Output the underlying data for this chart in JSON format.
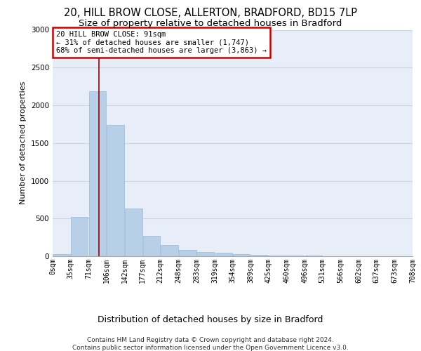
{
  "title_line1": "20, HILL BROW CLOSE, ALLERTON, BRADFORD, BD15 7LP",
  "title_line2": "Size of property relative to detached houses in Bradford",
  "xlabel": "Distribution of detached houses by size in Bradford",
  "ylabel": "Number of detached properties",
  "bin_labels": [
    "0sqm",
    "35sqm",
    "71sqm",
    "106sqm",
    "142sqm",
    "177sqm",
    "212sqm",
    "248sqm",
    "283sqm",
    "319sqm",
    "354sqm",
    "389sqm",
    "425sqm",
    "460sqm",
    "496sqm",
    "531sqm",
    "566sqm",
    "602sqm",
    "637sqm",
    "673sqm",
    "708sqm"
  ],
  "bar_values": [
    30,
    520,
    2190,
    1740,
    630,
    270,
    145,
    85,
    55,
    45,
    25,
    15,
    10,
    8,
    5,
    3,
    2,
    1,
    1,
    0,
    0
  ],
  "bar_color": "#b8cfe8",
  "bar_edge_color": "#9ab8d8",
  "grid_color": "#ccd6e8",
  "background_color": "#e8eef8",
  "annotation_line_color": "#990000",
  "annotation_box_text": "20 HILL BROW CLOSE: 91sqm\n← 31% of detached houses are smaller (1,747)\n68% of semi-detached houses are larger (3,863) →",
  "annotation_box_edge_color": "#cc0000",
  "ylim_max": 3000,
  "yticks": [
    0,
    500,
    1000,
    1500,
    2000,
    2500,
    3000
  ],
  "bin_edges": [
    0,
    35,
    71,
    106,
    142,
    177,
    212,
    248,
    283,
    319,
    354,
    389,
    425,
    460,
    496,
    531,
    566,
    602,
    637,
    673,
    708
  ],
  "footer_text": "Contains HM Land Registry data © Crown copyright and database right 2024.\nContains public sector information licensed under the Open Government Licence v3.0.",
  "property_size": 91,
  "title_fontsize": 10.5,
  "subtitle_fontsize": 9.5,
  "ylabel_fontsize": 8,
  "xlabel_fontsize": 9,
  "tick_fontsize": 7,
  "footer_fontsize": 6.5,
  "annot_fontsize": 7.5
}
